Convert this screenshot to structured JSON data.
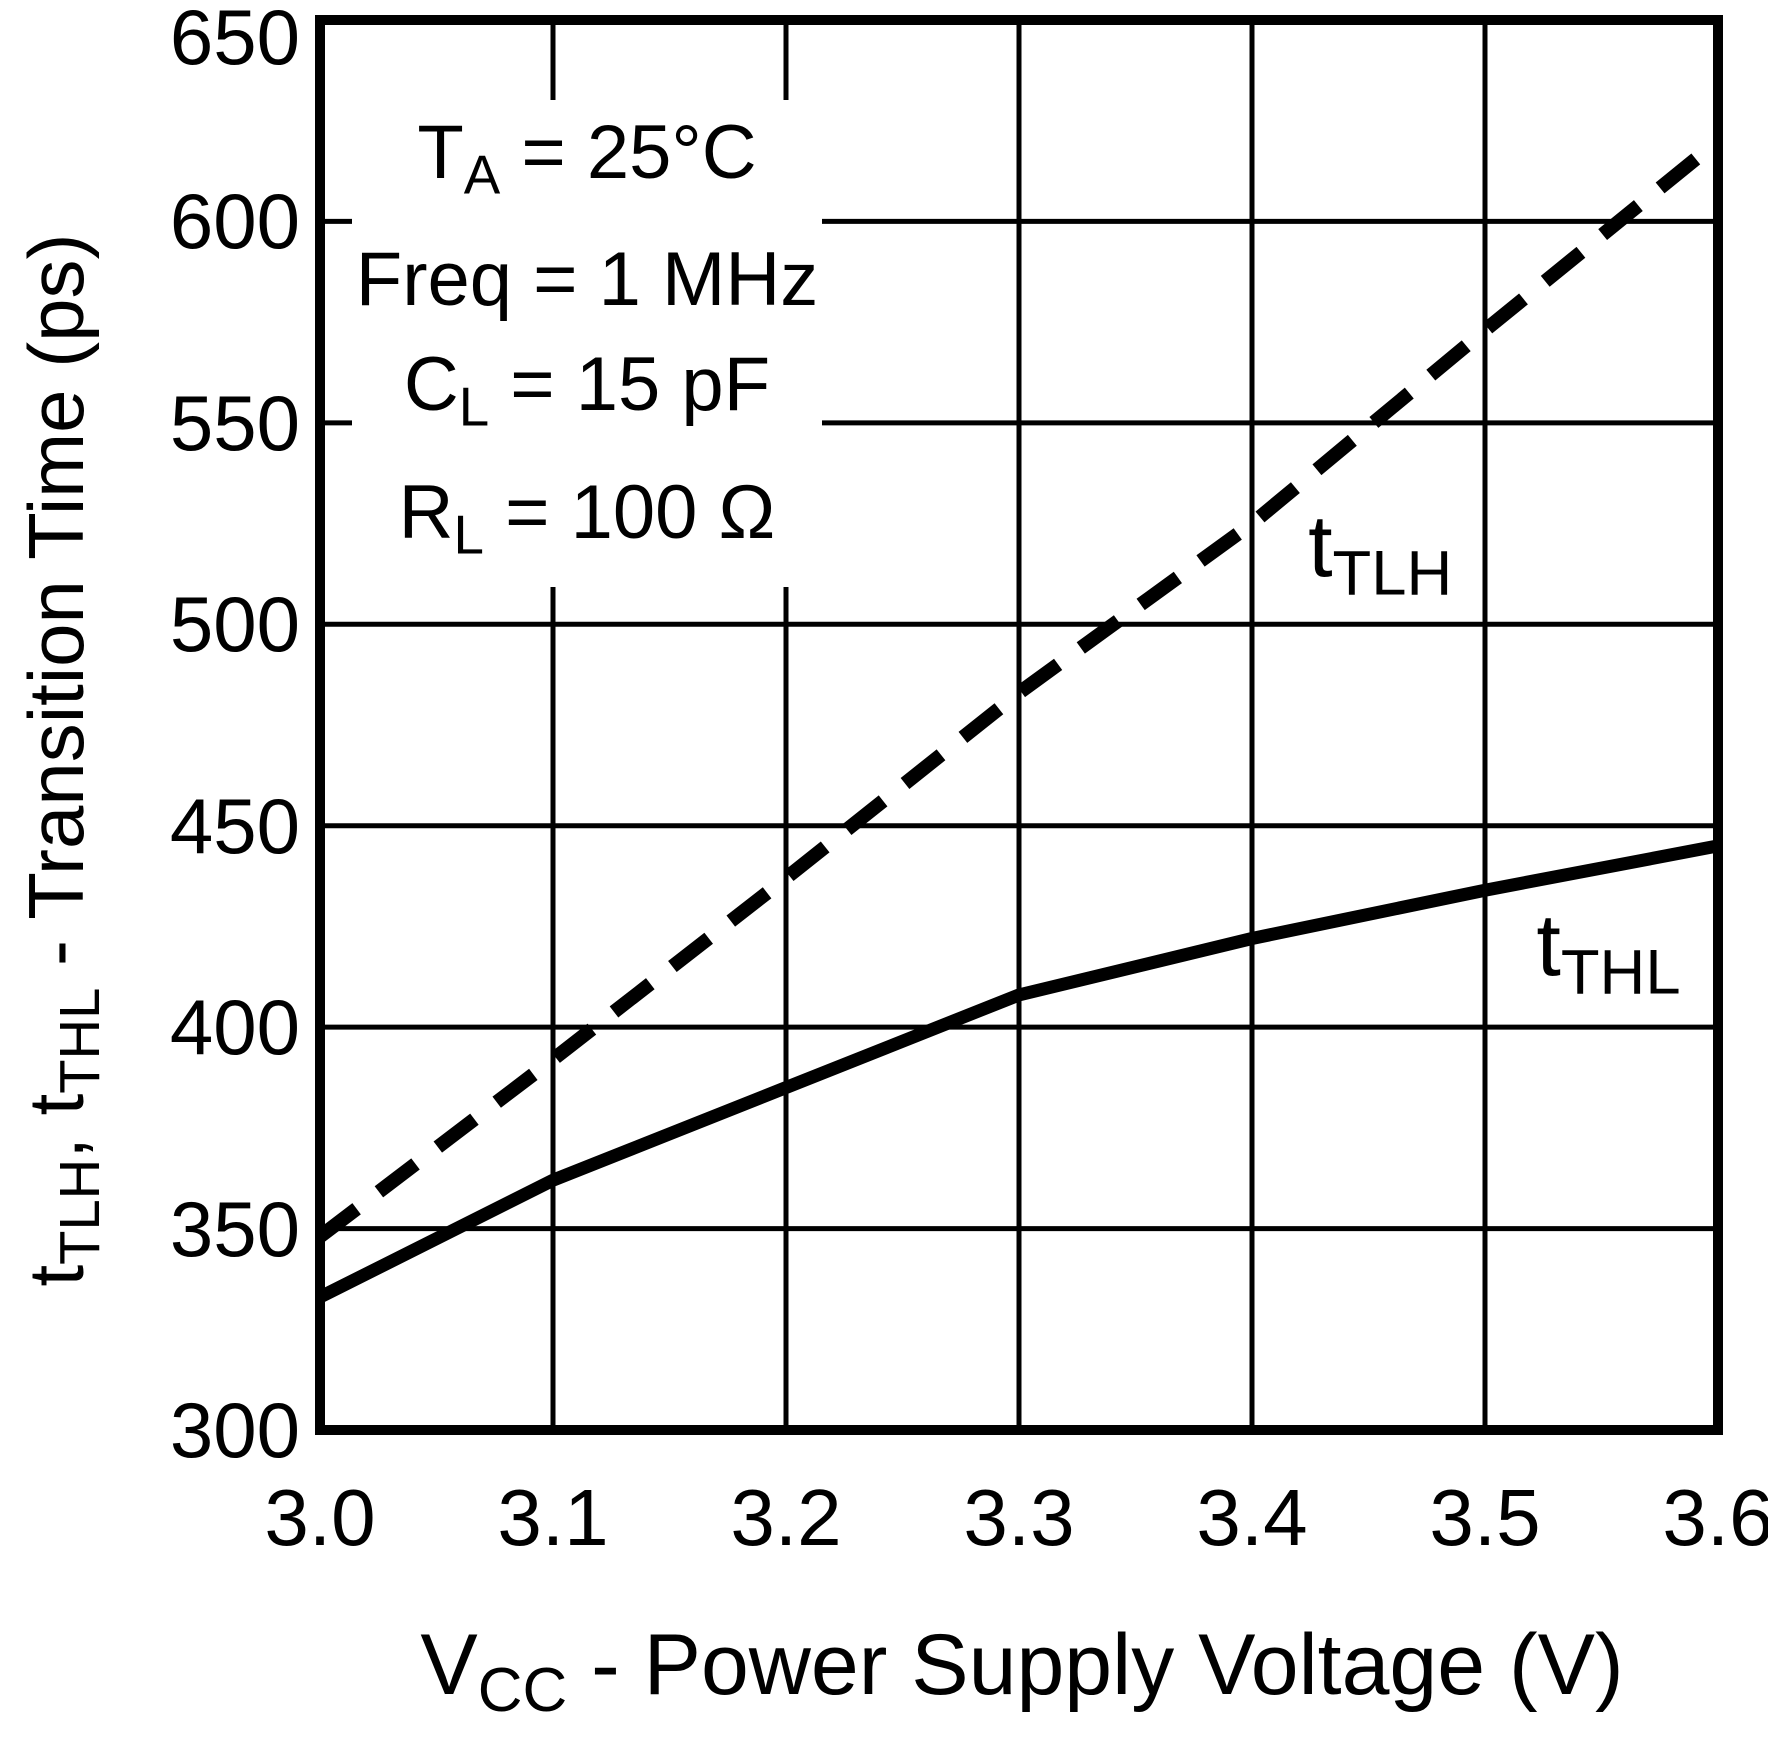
{
  "colors": {
    "ink": "#000000",
    "background": "#ffffff"
  },
  "chart_data": {
    "type": "line",
    "title": "",
    "xlabel": "VCC - Power Supply Voltage (V)",
    "ylabel": "tTLH, tTHL - Transition Time (ps)",
    "xlabel_rich": [
      {
        "t": "V"
      },
      {
        "s": "CC"
      },
      {
        "t": " - Power Supply Voltage (V)"
      }
    ],
    "ylabel_rich": [
      {
        "t": "t"
      },
      {
        "s": "TLH"
      },
      {
        "t": ", t"
      },
      {
        "s": "THL"
      },
      {
        "t": " - Transition Time (ps)"
      }
    ],
    "xlim": [
      3.0,
      3.6
    ],
    "ylim": [
      300,
      650
    ],
    "grid": true,
    "x": [
      3.0,
      3.1,
      3.2,
      3.3,
      3.4,
      3.5,
      3.6
    ],
    "x_tick_labels": [
      "3.0",
      "3.1",
      "3.2",
      "3.3",
      "3.4",
      "3.5",
      "3.6"
    ],
    "y_ticks": [
      650,
      600,
      550,
      500,
      450,
      400,
      350,
      300
    ],
    "series": [
      {
        "name": "tTLH",
        "label_rich": [
          {
            "t": "t"
          },
          {
            "s": "TLH"
          }
        ],
        "style": "dashed",
        "values": [
          348,
          392,
          437,
          483,
          525,
          573,
          620
        ],
        "label_pos": {
          "x": 3.455,
          "y": 516
        }
      },
      {
        "name": "tTHL",
        "label_rich": [
          {
            "t": "t"
          },
          {
            "s": "THL"
          }
        ],
        "style": "solid",
        "values": [
          333,
          362,
          385,
          408,
          422,
          434,
          445
        ],
        "label_pos": {
          "x": 3.553,
          "y": 417
        }
      }
    ],
    "annotations": [
      {
        "parts": [
          {
            "t": "T"
          },
          {
            "s": "A"
          },
          {
            "t": " = 25°C"
          }
        ]
      },
      {
        "parts": [
          {
            "t": "Freq = 1 MHz"
          }
        ]
      },
      {
        "parts": [
          {
            "t": "C"
          },
          {
            "s": "L"
          },
          {
            "t": " = 15 pF"
          }
        ]
      },
      {
        "parts": [
          {
            "t": "R"
          },
          {
            "s": "L"
          },
          {
            "t": " = 100 Ω"
          }
        ]
      }
    ]
  }
}
